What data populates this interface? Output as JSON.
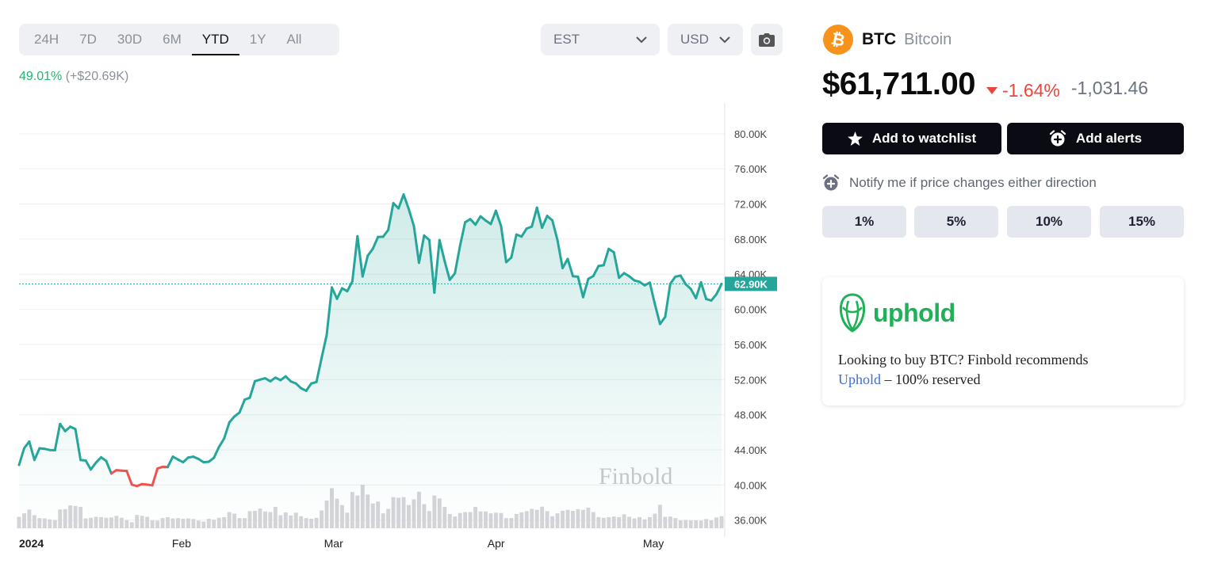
{
  "toolbar": {
    "range_tabs": [
      "24H",
      "7D",
      "30D",
      "6M",
      "YTD",
      "1Y",
      "All"
    ],
    "active_range": "YTD",
    "timezone": "EST",
    "currency": "USD"
  },
  "performance": {
    "percent": "49.01%",
    "absolute": "(+$20.69K)"
  },
  "coin": {
    "symbol": "BTC",
    "name": "Bitcoin",
    "price": "$61,711.00",
    "change_pct": "-1.64%",
    "change_abs": "-1,031.46",
    "logo_color": "#f7931a"
  },
  "actions": {
    "watchlist": "Add to watchlist",
    "alerts": "Add alerts"
  },
  "notify": {
    "text": "Notify me if price changes either direction",
    "options": [
      "1%",
      "5%",
      "10%",
      "15%"
    ]
  },
  "promo": {
    "brand": "uphold",
    "text_before": "Looking to buy BTC? Finbold recommends",
    "link": "Uphold",
    "text_after": " – 100% reserved",
    "brand_color": "#1fb157"
  },
  "colors": {
    "up": "#26a69a",
    "down": "#ef5350",
    "positive_text": "#22b573",
    "negative_text": "#e8473b"
  },
  "chart_data": {
    "type": "area",
    "watermark": "Finbold",
    "x_tick_labels": [
      "2024",
      "Feb",
      "Mar",
      "Apr",
      "May"
    ],
    "y_tick_labels": [
      "80.00K",
      "76.00K",
      "72.00K",
      "68.00K",
      "64.00K",
      "60.00K",
      "56.00K",
      "52.00K",
      "48.00K",
      "44.00K",
      "40.00K",
      "36.00K"
    ],
    "y_ticks": [
      80000,
      76000,
      72000,
      68000,
      64000,
      60000,
      56000,
      52000,
      48000,
      44000,
      40000,
      36000
    ],
    "ylim": [
      34800,
      82600
    ],
    "current_marker": {
      "value": 62900,
      "label": "62.90K"
    },
    "start_date": "2024-01-01",
    "end_date": "2024-05-14",
    "month_starts": [
      "2024-01-01",
      "2024-02-01",
      "2024-03-01",
      "2024-04-01",
      "2024-05-01"
    ],
    "series": [
      {
        "values": [
          42280,
          44190,
          44950,
          42850,
          44180,
          44120,
          43980,
          43950,
          46950,
          46130,
          46640,
          46350,
          42850,
          42780,
          41760,
          42540,
          43150,
          42740,
          41310,
          41690,
          41640,
          41600,
          40040,
          39880,
          40100,
          40040,
          39960,
          41870,
          42070,
          42040,
          43220,
          42900,
          42590,
          43120,
          43220,
          42960,
          42590,
          42650,
          43100,
          44330,
          45300,
          47120,
          47800,
          48260,
          49720,
          49930,
          51820,
          52000,
          52150,
          51810,
          52220,
          51940,
          52370,
          51790,
          51570,
          51020,
          50730,
          51560,
          51730,
          54460,
          57080,
          62500,
          61200,
          62400,
          62060,
          63200,
          68330,
          63740,
          66100,
          66900,
          68240,
          68270,
          69040,
          72090,
          71500,
          73080,
          71420,
          69480,
          65300,
          68400,
          67900,
          61900,
          67890,
          65470,
          63360,
          64100,
          67240,
          69910,
          70270,
          69640,
          70590,
          70120,
          69710,
          71240,
          69490,
          65370,
          65900,
          68520,
          68290,
          69200,
          69420,
          71580,
          69300,
          70640,
          70140,
          67860,
          64700,
          65740,
          63780,
          63710,
          61390,
          63460,
          63800,
          64930,
          65020,
          66890,
          66500,
          63600,
          64120,
          63760,
          63290,
          63140,
          62730,
          63050,
          60590,
          58330,
          59140,
          62900,
          63720,
          63840,
          62870,
          62330,
          61270,
          63080,
          61170,
          61010,
          61710,
          62900
        ]
      }
    ],
    "volume": [
      3.6,
      4.7,
      5.9,
      4.1,
      3.2,
      3.1,
      2.8,
      2.6,
      5.9,
      6.0,
      7.2,
      7.0,
      6.7,
      3.1,
      3.3,
      3.6,
      3.5,
      3.3,
      3.4,
      3.9,
      3.3,
      2.6,
      1.9,
      4.2,
      3.9,
      3.6,
      2.5,
      2.4,
      3.2,
      3.5,
      3.1,
      3.2,
      3.0,
      3.1,
      2.9,
      2.4,
      2.1,
      3.0,
      2.7,
      3.3,
      3.5,
      5.1,
      4.6,
      3.2,
      3.2,
      5.4,
      5.5,
      6.2,
      5.3,
      5.1,
      6.7,
      4.1,
      5.0,
      4.0,
      4.9,
      3.8,
      3.2,
      3.0,
      3.3,
      5.6,
      8.7,
      12.6,
      9.3,
      7.3,
      4.9,
      11.4,
      10.3,
      13.7,
      10.6,
      7.8,
      8.4,
      4.7,
      6.1,
      9.8,
      9.6,
      9.8,
      7.3,
      9.1,
      11.5,
      7.6,
      5.4,
      10.3,
      9.4,
      6.7,
      4.5,
      3.7,
      4.8,
      5.1,
      5.1,
      6.7,
      5.3,
      5.3,
      4.7,
      4.9,
      4.8,
      3.2,
      3.2,
      4.5,
      5.0,
      5.4,
      6.1,
      5.8,
      6.8,
      5.4,
      3.8,
      4.7,
      5.5,
      5.8,
      5.5,
      6.0,
      5.8,
      6.5,
      5.1,
      3.5,
      3.3,
      3.5,
      3.7,
      3.5,
      4.4,
      3.6,
      3.1,
      3.5,
      2.8,
      3.5,
      4.6,
      7.4,
      3.6,
      3.7,
      3.2,
      2.5,
      2.6,
      2.5,
      2.5,
      2.4,
      2.9,
      2.5,
      3.4,
      3.8
    ]
  }
}
